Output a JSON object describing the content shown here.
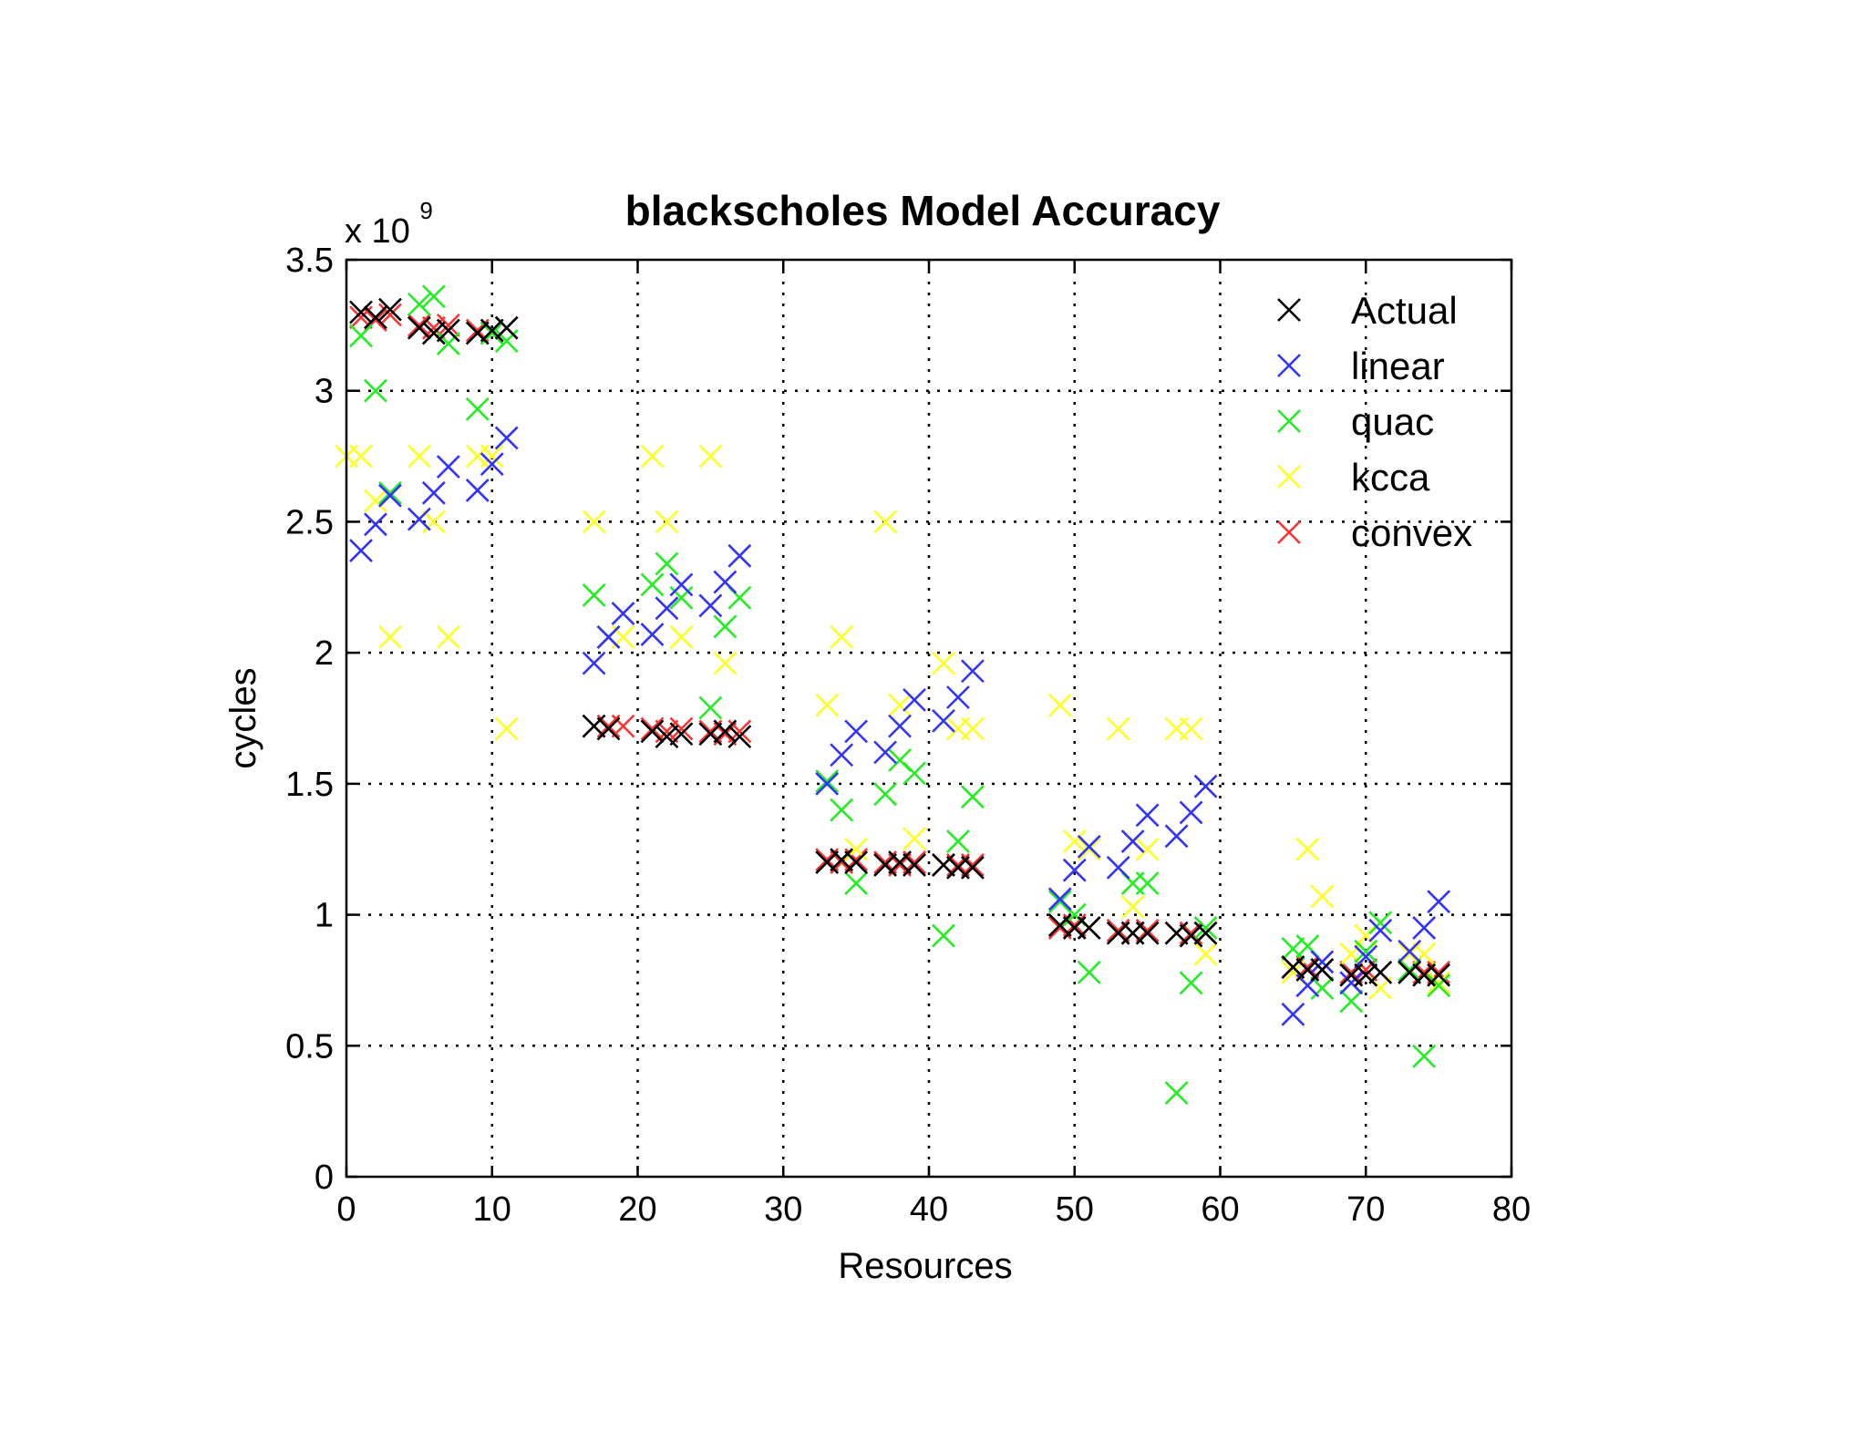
{
  "chart_data": {
    "type": "scatter",
    "title": "blackscholes Model Accuracy",
    "xlabel": "Resources",
    "ylabel": "cycles",
    "y_multiplier_label": "x 10",
    "y_multiplier_exponent": "9",
    "xlim": [
      0,
      80
    ],
    "ylim": [
      0,
      3.5
    ],
    "xticks": [
      0,
      10,
      20,
      30,
      40,
      50,
      60,
      70,
      80
    ],
    "yticks": [
      0,
      0.5,
      1,
      1.5,
      2,
      2.5,
      3,
      3.5
    ],
    "xtick_labels": [
      "0",
      "10",
      "20",
      "30",
      "40",
      "50",
      "60",
      "70",
      "80"
    ],
    "ytick_labels": [
      "0",
      "0.5",
      "1",
      "1.5",
      "2",
      "2.5",
      "3",
      "3.5"
    ],
    "grid": true,
    "legend_position": "top-right",
    "marker": "x",
    "series": [
      {
        "name": "Actual",
        "color": "#000000",
        "points": [
          [
            1,
            3.3
          ],
          [
            2,
            3.28
          ],
          [
            3,
            3.31
          ],
          [
            5,
            3.24
          ],
          [
            6,
            3.22
          ],
          [
            7,
            3.23
          ],
          [
            9,
            3.22
          ],
          [
            10,
            3.23
          ],
          [
            11,
            3.24
          ],
          [
            17,
            1.72
          ],
          [
            18,
            1.71
          ],
          [
            21,
            1.7
          ],
          [
            22,
            1.68
          ],
          [
            23,
            1.69
          ],
          [
            25,
            1.69
          ],
          [
            26,
            1.7
          ],
          [
            27,
            1.68
          ],
          [
            33,
            1.2
          ],
          [
            34,
            1.21
          ],
          [
            35,
            1.2
          ],
          [
            37,
            1.19
          ],
          [
            38,
            1.2
          ],
          [
            39,
            1.19
          ],
          [
            41,
            1.19
          ],
          [
            42,
            1.18
          ],
          [
            43,
            1.18
          ],
          [
            49,
            0.96
          ],
          [
            50,
            0.95
          ],
          [
            51,
            0.95
          ],
          [
            53,
            0.93
          ],
          [
            54,
            0.93
          ],
          [
            55,
            0.93
          ],
          [
            57,
            0.93
          ],
          [
            58,
            0.92
          ],
          [
            59,
            0.93
          ],
          [
            65,
            0.8
          ],
          [
            66,
            0.79
          ],
          [
            67,
            0.79
          ],
          [
            69,
            0.77
          ],
          [
            70,
            0.77
          ],
          [
            71,
            0.78
          ],
          [
            73,
            0.78
          ],
          [
            74,
            0.77
          ],
          [
            75,
            0.77
          ]
        ]
      },
      {
        "name": "linear",
        "color": "#3333ff",
        "points": [
          [
            1,
            2.39
          ],
          [
            2,
            2.49
          ],
          [
            3,
            2.6
          ],
          [
            5,
            2.51
          ],
          [
            6,
            2.61
          ],
          [
            7,
            2.71
          ],
          [
            9,
            2.62
          ],
          [
            10,
            2.72
          ],
          [
            11,
            2.82
          ],
          [
            17,
            1.96
          ],
          [
            18,
            2.06
          ],
          [
            19,
            2.15
          ],
          [
            21,
            2.07
          ],
          [
            22,
            2.17
          ],
          [
            23,
            2.26
          ],
          [
            25,
            2.18
          ],
          [
            26,
            2.27
          ],
          [
            27,
            2.37
          ],
          [
            33,
            1.5
          ],
          [
            34,
            1.61
          ],
          [
            35,
            1.7
          ],
          [
            37,
            1.62
          ],
          [
            38,
            1.72
          ],
          [
            39,
            1.82
          ],
          [
            41,
            1.74
          ],
          [
            42,
            1.83
          ],
          [
            43,
            1.93
          ],
          [
            49,
            1.06
          ],
          [
            50,
            1.17
          ],
          [
            51,
            1.26
          ],
          [
            53,
            1.18
          ],
          [
            54,
            1.28
          ],
          [
            55,
            1.38
          ],
          [
            57,
            1.3
          ],
          [
            58,
            1.39
          ],
          [
            59,
            1.49
          ],
          [
            65,
            0.62
          ],
          [
            66,
            0.73
          ],
          [
            67,
            0.82
          ],
          [
            69,
            0.74
          ],
          [
            70,
            0.84
          ],
          [
            71,
            0.94
          ],
          [
            73,
            0.86
          ],
          [
            74,
            0.95
          ],
          [
            75,
            1.05
          ]
        ]
      },
      {
        "name": "quac",
        "color": "#22ee22",
        "points": [
          [
            1,
            3.21
          ],
          [
            2,
            3.0
          ],
          [
            3,
            2.61
          ],
          [
            5,
            3.33
          ],
          [
            6,
            3.36
          ],
          [
            7,
            3.18
          ],
          [
            9,
            2.93
          ],
          [
            10,
            3.22
          ],
          [
            11,
            3.19
          ],
          [
            17,
            2.22
          ],
          [
            18,
            2.06
          ],
          [
            21,
            2.26
          ],
          [
            22,
            2.34
          ],
          [
            23,
            2.21
          ],
          [
            25,
            1.79
          ],
          [
            26,
            2.1
          ],
          [
            27,
            2.21
          ],
          [
            33,
            1.51
          ],
          [
            34,
            1.4
          ],
          [
            35,
            1.12
          ],
          [
            37,
            1.46
          ],
          [
            38,
            1.59
          ],
          [
            39,
            1.54
          ],
          [
            41,
            0.92
          ],
          [
            42,
            1.28
          ],
          [
            43,
            1.45
          ],
          [
            49,
            1.05
          ],
          [
            50,
            1.0
          ],
          [
            51,
            0.78
          ],
          [
            54,
            1.12
          ],
          [
            55,
            1.12
          ],
          [
            57,
            0.32
          ],
          [
            58,
            0.74
          ],
          [
            59,
            0.95
          ],
          [
            65,
            0.87
          ],
          [
            66,
            0.88
          ],
          [
            67,
            0.72
          ],
          [
            69,
            0.67
          ],
          [
            70,
            0.86
          ],
          [
            71,
            0.97
          ],
          [
            73,
            0.79
          ],
          [
            74,
            0.46
          ],
          [
            75,
            0.73
          ]
        ]
      },
      {
        "name": "kcca",
        "color": "#ffff22",
        "points": [
          [
            0,
            2.75
          ],
          [
            1,
            2.75
          ],
          [
            2,
            2.58
          ],
          [
            3,
            2.06
          ],
          [
            5,
            2.75
          ],
          [
            6,
            2.5
          ],
          [
            7,
            2.06
          ],
          [
            9,
            2.75
          ],
          [
            10,
            2.75
          ],
          [
            11,
            1.71
          ],
          [
            17,
            2.5
          ],
          [
            18,
            2.06
          ],
          [
            19,
            2.06
          ],
          [
            21,
            2.75
          ],
          [
            22,
            2.5
          ],
          [
            23,
            2.06
          ],
          [
            25,
            2.75
          ],
          [
            26,
            1.96
          ],
          [
            33,
            1.8
          ],
          [
            34,
            2.06
          ],
          [
            35,
            1.25
          ],
          [
            37,
            2.5
          ],
          [
            38,
            1.8
          ],
          [
            39,
            1.29
          ],
          [
            41,
            1.96
          ],
          [
            42,
            1.71
          ],
          [
            43,
            1.71
          ],
          [
            49,
            1.8
          ],
          [
            50,
            1.28
          ],
          [
            51,
            1.25
          ],
          [
            53,
            1.71
          ],
          [
            54,
            1.03
          ],
          [
            55,
            1.25
          ],
          [
            57,
            1.71
          ],
          [
            58,
            1.71
          ],
          [
            59,
            0.85
          ],
          [
            65,
            0.78
          ],
          [
            66,
            1.25
          ],
          [
            67,
            1.07
          ],
          [
            69,
            0.85
          ],
          [
            70,
            0.92
          ],
          [
            71,
            0.72
          ],
          [
            73,
            0.85
          ],
          [
            74,
            0.85
          ],
          [
            75,
            0.74
          ]
        ]
      },
      {
        "name": "convex",
        "color": "#ff3333",
        "points": [
          [
            1,
            3.28
          ],
          [
            2,
            3.27
          ],
          [
            3,
            3.29
          ],
          [
            5,
            3.25
          ],
          [
            6,
            3.24
          ],
          [
            7,
            3.25
          ],
          [
            9,
            3.23
          ],
          [
            10,
            3.22
          ],
          [
            11,
            3.24
          ],
          [
            17,
            1.72
          ],
          [
            18,
            1.72
          ],
          [
            19,
            1.72
          ],
          [
            21,
            1.71
          ],
          [
            22,
            1.7
          ],
          [
            23,
            1.71
          ],
          [
            25,
            1.7
          ],
          [
            26,
            1.69
          ],
          [
            27,
            1.7
          ],
          [
            33,
            1.21
          ],
          [
            34,
            1.2
          ],
          [
            35,
            1.21
          ],
          [
            37,
            1.2
          ],
          [
            38,
            1.19
          ],
          [
            39,
            1.2
          ],
          [
            41,
            1.19
          ],
          [
            42,
            1.19
          ],
          [
            43,
            1.19
          ],
          [
            49,
            0.95
          ],
          [
            50,
            0.96
          ],
          [
            51,
            0.95
          ],
          [
            53,
            0.94
          ],
          [
            54,
            0.93
          ],
          [
            55,
            0.94
          ],
          [
            57,
            0.93
          ],
          [
            58,
            0.93
          ],
          [
            59,
            0.93
          ],
          [
            65,
            0.8
          ],
          [
            66,
            0.8
          ],
          [
            67,
            0.79
          ],
          [
            69,
            0.78
          ],
          [
            70,
            0.79
          ],
          [
            71,
            0.78
          ],
          [
            73,
            0.78
          ],
          [
            74,
            0.78
          ],
          [
            75,
            0.78
          ]
        ]
      }
    ]
  }
}
